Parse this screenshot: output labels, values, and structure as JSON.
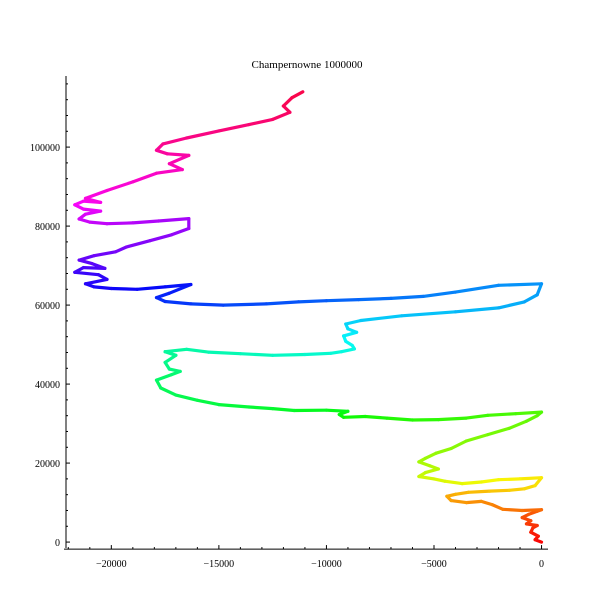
{
  "chart_data": {
    "type": "line",
    "title": "Champernowne 1000000",
    "xlabel": "",
    "ylabel": "",
    "xlim": [
      -22200,
      300
    ],
    "ylim": [
      -1500,
      118000
    ],
    "x_ticks": [
      -20000,
      -15000,
      -10000,
      -5000,
      0
    ],
    "x_tick_labels": [
      "−20000",
      "−15000",
      "−10000",
      "−5000",
      "0"
    ],
    "y_ticks": [
      0,
      20000,
      40000,
      60000,
      80000,
      100000
    ],
    "y_tick_labels": [
      "0",
      "20000",
      "40000",
      "60000",
      "80000",
      "100000"
    ],
    "grid": false,
    "color_scheme": "rainbow along path (red at start, through orange, yellow, green, cyan, blue, violet, magenta, back to red at end)",
    "series": [
      {
        "points": [
          [
            0,
            0
          ],
          [
            -300,
            600
          ],
          [
            -150,
            1500
          ],
          [
            -500,
            2500
          ],
          [
            -400,
            3600
          ],
          [
            -200,
            4200
          ],
          [
            -700,
            4600
          ],
          [
            -500,
            5400
          ],
          [
            -900,
            6200
          ],
          [
            -600,
            7000
          ],
          [
            -200,
            7800
          ],
          [
            0,
            8200
          ],
          [
            -900,
            8000
          ],
          [
            -1800,
            8300
          ],
          [
            -2300,
            9500
          ],
          [
            -2800,
            10300
          ],
          [
            -3500,
            10000
          ],
          [
            -4200,
            10500
          ],
          [
            -4400,
            11600
          ],
          [
            -4000,
            12100
          ],
          [
            -3400,
            12600
          ],
          [
            -2400,
            12900
          ],
          [
            -1500,
            13100
          ],
          [
            -800,
            13500
          ],
          [
            -300,
            14300
          ],
          [
            0,
            16300
          ],
          [
            -1000,
            16000
          ],
          [
            -2000,
            15800
          ],
          [
            -2800,
            15200
          ],
          [
            -3700,
            14800
          ],
          [
            -4500,
            15400
          ],
          [
            -5000,
            16000
          ],
          [
            -5700,
            16600
          ],
          [
            -5400,
            17600
          ],
          [
            -4800,
            18500
          ],
          [
            -5200,
            19300
          ],
          [
            -5700,
            20300
          ],
          [
            -5400,
            21200
          ],
          [
            -4900,
            22500
          ],
          [
            -4200,
            23700
          ],
          [
            -3500,
            25600
          ],
          [
            -2500,
            27200
          ],
          [
            -1500,
            28800
          ],
          [
            -700,
            30600
          ],
          [
            -200,
            32000
          ],
          [
            0,
            32900
          ],
          [
            -1200,
            32500
          ],
          [
            -2500,
            32100
          ],
          [
            -3500,
            31400
          ],
          [
            -4800,
            31000
          ],
          [
            -6000,
            30900
          ],
          [
            -7200,
            31400
          ],
          [
            -8200,
            31800
          ],
          [
            -9200,
            31600
          ],
          [
            -9400,
            32300
          ],
          [
            -9000,
            33100
          ],
          [
            -10000,
            33400
          ],
          [
            -11500,
            33300
          ],
          [
            -12500,
            33800
          ],
          [
            -13600,
            34200
          ],
          [
            -15000,
            34800
          ],
          [
            -16000,
            35900
          ],
          [
            -17000,
            37200
          ],
          [
            -17700,
            39000
          ],
          [
            -17900,
            41000
          ],
          [
            -17200,
            42400
          ],
          [
            -16800,
            43200
          ],
          [
            -17300,
            43800
          ],
          [
            -17500,
            45500
          ],
          [
            -17000,
            47300
          ],
          [
            -17500,
            48200
          ],
          [
            -16500,
            48800
          ],
          [
            -15500,
            48100
          ],
          [
            -14000,
            47700
          ],
          [
            -12500,
            47300
          ],
          [
            -11000,
            47500
          ],
          [
            -9800,
            47800
          ],
          [
            -9300,
            48200
          ],
          [
            -8700,
            48900
          ],
          [
            -8800,
            49800
          ],
          [
            -9100,
            50800
          ],
          [
            -9200,
            52200
          ],
          [
            -8600,
            53100
          ],
          [
            -9000,
            54000
          ],
          [
            -9100,
            55200
          ],
          [
            -8400,
            56100
          ],
          [
            -6500,
            57300
          ],
          [
            -4000,
            58300
          ],
          [
            -2000,
            59300
          ],
          [
            -800,
            60800
          ],
          [
            -200,
            62600
          ],
          [
            0,
            65400
          ],
          [
            -2000,
            65000
          ],
          [
            -4000,
            63300
          ],
          [
            -5500,
            62200
          ],
          [
            -7000,
            61700
          ],
          [
            -8500,
            61400
          ],
          [
            -10000,
            61100
          ],
          [
            -11300,
            60800
          ],
          [
            -12800,
            60300
          ],
          [
            -14800,
            60000
          ],
          [
            -16300,
            60300
          ],
          [
            -17500,
            60900
          ],
          [
            -17900,
            61900
          ],
          [
            -17300,
            63000
          ],
          [
            -16300,
            65200
          ],
          [
            -17500,
            64600
          ],
          [
            -18800,
            64000
          ],
          [
            -20000,
            64200
          ],
          [
            -20800,
            64600
          ],
          [
            -21200,
            65400
          ],
          [
            -20200,
            66500
          ],
          [
            -20600,
            67700
          ],
          [
            -21700,
            68300
          ],
          [
            -21300,
            69500
          ],
          [
            -20300,
            69300
          ],
          [
            -20900,
            70500
          ],
          [
            -21500,
            71400
          ],
          [
            -20800,
            72500
          ],
          [
            -19800,
            73500
          ],
          [
            -19300,
            74700
          ],
          [
            -18200,
            76300
          ],
          [
            -17200,
            77800
          ],
          [
            -16400,
            79400
          ],
          [
            -16400,
            81900
          ],
          [
            -17800,
            81300
          ],
          [
            -19000,
            80800
          ],
          [
            -20200,
            80600
          ],
          [
            -21000,
            81000
          ],
          [
            -21500,
            81800
          ],
          [
            -21200,
            83000
          ],
          [
            -20500,
            83800
          ],
          [
            -21300,
            84300
          ],
          [
            -21700,
            85400
          ],
          [
            -21300,
            86300
          ],
          [
            -20500,
            86000
          ],
          [
            -21200,
            87000
          ],
          [
            -20200,
            89000
          ],
          [
            -19000,
            91200
          ],
          [
            -17900,
            93400
          ],
          [
            -16700,
            94300
          ],
          [
            -17300,
            95800
          ],
          [
            -16400,
            97900
          ],
          [
            -17400,
            98300
          ],
          [
            -17900,
            99200
          ],
          [
            -17600,
            100800
          ],
          [
            -16500,
            102300
          ],
          [
            -15000,
            104100
          ],
          [
            -13600,
            105700
          ],
          [
            -12500,
            107000
          ],
          [
            -11700,
            108800
          ],
          [
            -12000,
            110400
          ],
          [
            -11600,
            112500
          ],
          [
            -11100,
            114000
          ]
        ]
      }
    ]
  }
}
